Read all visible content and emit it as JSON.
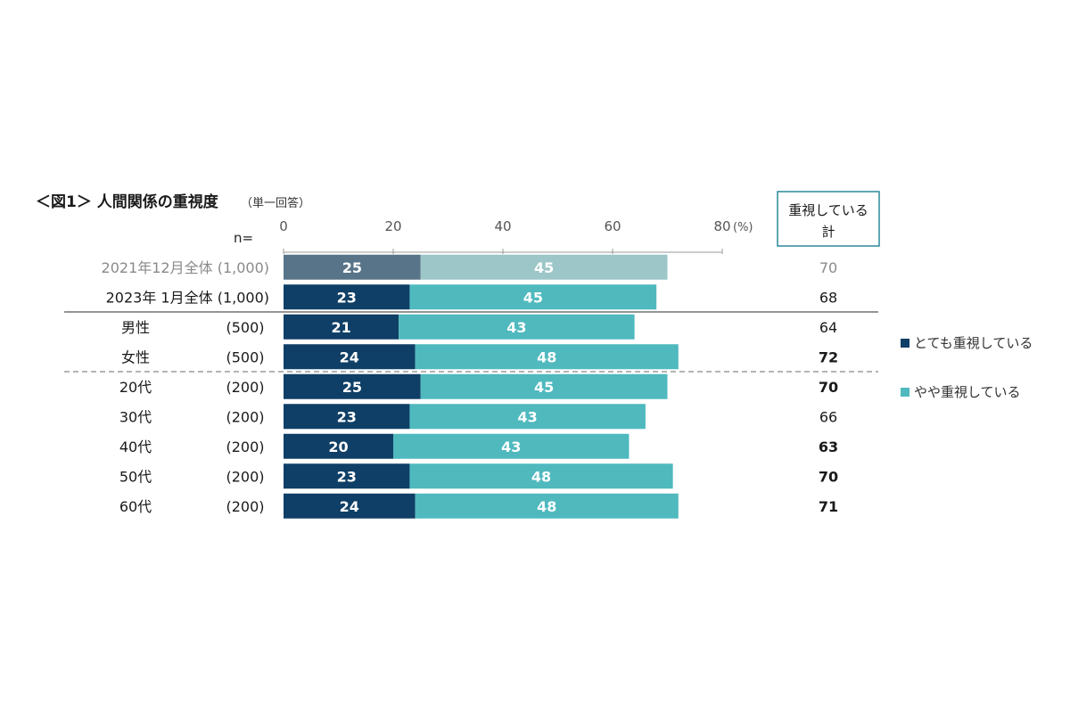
{
  "title": "＜図1＞ 人間関係の重視度",
  "subtitle": "（単一回答）",
  "n_label": "n=",
  "header": {
    "line1": "重視している",
    "line2": "計"
  },
  "colors": {
    "strong": "#0f3f66",
    "moderate": "#4fb9be",
    "strong_faded": "#587489",
    "moderate_faded": "#9cc6c8"
  },
  "chart_data": {
    "type": "bar",
    "orientation": "horizontal",
    "stacked": true,
    "xlim": [
      0,
      80
    ],
    "ticks": [
      "0",
      "20",
      "40",
      "60",
      "80"
    ],
    "unit": "(%)",
    "categories": [
      "2021年12月全体",
      "2023年 1月全体",
      "男性",
      "女性",
      "20代",
      "30代",
      "40代",
      "50代",
      "60代"
    ],
    "n": [
      "(1,000)",
      "(1,000)",
      "(500)",
      "(500)",
      "(200)",
      "(200)",
      "(200)",
      "(200)",
      "(200)"
    ],
    "series": [
      {
        "name": "とても重視している",
        "values": [
          25,
          23,
          21,
          24,
          25,
          23,
          20,
          23,
          24
        ]
      },
      {
        "name": "やや重視している",
        "values": [
          45,
          45,
          43,
          48,
          45,
          43,
          43,
          48,
          48
        ]
      }
    ],
    "totals": [
      "70",
      "68",
      "64",
      "72",
      "70",
      "66",
      "63",
      "70",
      "71"
    ],
    "totals_bold": [
      false,
      false,
      false,
      true,
      true,
      false,
      true,
      true,
      true
    ],
    "faded_rows": [
      0
    ]
  }
}
